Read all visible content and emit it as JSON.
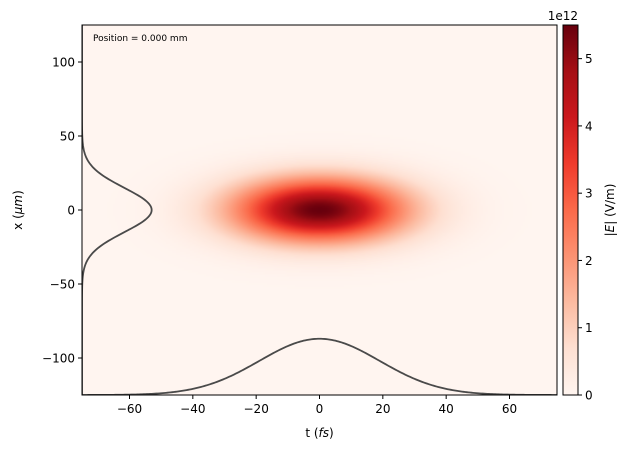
{
  "chart_data": {
    "type": "heatmap",
    "title": "",
    "annotation": "Position = 0.000 mm",
    "xlabel": "t (fs)",
    "xlabel_plain": "t (",
    "xlabel_italic": "fs",
    "xlabel_close": ")",
    "ylabel_plain": "x (",
    "ylabel_italic": "μm",
    "ylabel_close": ")",
    "xlim": [
      -75,
      75
    ],
    "ylim": [
      -125,
      125
    ],
    "xticks": [
      -60,
      -40,
      -20,
      0,
      20,
      40,
      60
    ],
    "xtick_labels": [
      "−60",
      "−40",
      "−20",
      "0",
      "20",
      "40",
      "60"
    ],
    "yticks": [
      -100,
      -50,
      0,
      50,
      100
    ],
    "ytick_labels": [
      "−100",
      "−50",
      "0",
      "50",
      "100"
    ],
    "colorbar": {
      "label": "|E| (V/m)",
      "label_bar_open": "|",
      "label_italic": "E",
      "label_bar_close": "| (V/m)",
      "offset_text": "1e12",
      "min": 0,
      "max": 5.5,
      "ticks": [
        0,
        1,
        2,
        3,
        4,
        5
      ],
      "tick_labels": [
        "0",
        "1",
        "2",
        "3",
        "4",
        "5"
      ],
      "colormap": "Reds"
    },
    "field": {
      "peak_amplitude": 5500000000000.0,
      "center_t_fs": 0,
      "center_x_um": 0,
      "sigma_t_fs": 19,
      "sigma_x_um": 15
    },
    "lineouts": {
      "color": "#4a4a4a",
      "temporal": {
        "baseline_x_um": -125,
        "peak_x_um": -87
      },
      "spatial": {
        "baseline_t_fs": -75,
        "peak_t_fs": -53
      }
    }
  }
}
